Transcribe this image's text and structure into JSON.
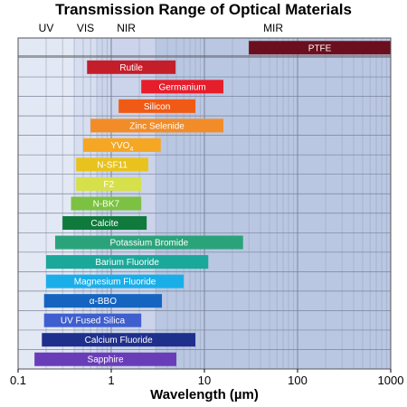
{
  "chart_data": {
    "type": "bar",
    "orientation": "horizontal-range",
    "title": "Transmission Range of Optical Materials",
    "xlabel": "Wavelength (µm)",
    "ylabel": "",
    "xscale": "log",
    "xlim": [
      0.1,
      1000
    ],
    "x_ticks": [
      "0.1",
      "1",
      "10",
      "100",
      "1000"
    ],
    "grid": true,
    "spectral_bands": [
      {
        "name": "UV",
        "range": [
          0.1,
          0.4
        ],
        "color": "#e3e8f5"
      },
      {
        "name": "VIS",
        "range": [
          0.4,
          0.7
        ],
        "color": "#d6deef"
      },
      {
        "name": "NIR",
        "range": [
          0.7,
          3
        ],
        "color": "#cbd4ea"
      },
      {
        "name": "MIR",
        "range": [
          3,
          1000
        ],
        "color": "#bac7e2"
      }
    ],
    "materials": [
      {
        "name": "PTFE",
        "label_main": "PTFE",
        "label_sub": "",
        "range": [
          30,
          1000
        ],
        "color": "#6b0f1e"
      },
      {
        "name": "Rutile",
        "label_main": "Rutile",
        "label_sub": "",
        "range": [
          0.55,
          4.9
        ],
        "color": "#c41e2a"
      },
      {
        "name": "Germanium",
        "label_main": "Germanium",
        "label_sub": "",
        "range": [
          2.1,
          16
        ],
        "color": "#e61e2c"
      },
      {
        "name": "Silicon",
        "label_main": "Silicon",
        "label_sub": "",
        "range": [
          1.2,
          8
        ],
        "color": "#f05a14"
      },
      {
        "name": "Zinc Selenide",
        "label_main": "Zinc Selenide",
        "label_sub": "",
        "range": [
          0.6,
          16
        ],
        "color": "#f28c28"
      },
      {
        "name": "YVO4",
        "label_main": "YVO",
        "label_sub": "4",
        "range": [
          0.5,
          3.4
        ],
        "color": "#f5a623"
      },
      {
        "name": "N-SF11",
        "label_main": "N-SF11",
        "label_sub": "",
        "range": [
          0.42,
          2.5
        ],
        "color": "#e8c31e"
      },
      {
        "name": "F2",
        "label_main": "F2",
        "label_sub": "",
        "range": [
          0.42,
          2.1
        ],
        "color": "#d6e04a"
      },
      {
        "name": "N-BK7",
        "label_main": "N-BK7",
        "label_sub": "",
        "range": [
          0.37,
          2.1
        ],
        "color": "#7cc142"
      },
      {
        "name": "Calcite",
        "label_main": "Calcite",
        "label_sub": "",
        "range": [
          0.3,
          2.4
        ],
        "color": "#0f7a3c"
      },
      {
        "name": "Potassium Bromide",
        "label_main": "Potassium Bromide",
        "label_sub": "",
        "range": [
          0.25,
          26
        ],
        "color": "#2ba37a"
      },
      {
        "name": "Barium Fluoride",
        "label_main": "Barium Fluoride",
        "label_sub": "",
        "range": [
          0.2,
          11
        ],
        "color": "#1aa89a"
      },
      {
        "name": "Magnesium Fluoride",
        "label_main": "Magnesium Fluoride",
        "label_sub": "",
        "range": [
          0.2,
          6
        ],
        "color": "#1aaee8"
      },
      {
        "name": "α-BBO",
        "label_main": "α-BBO",
        "label_sub": "",
        "range": [
          0.19,
          3.5
        ],
        "color": "#1565c0"
      },
      {
        "name": "UV Fused Silica",
        "label_main": "UV Fused Silica",
        "label_sub": "",
        "range": [
          0.19,
          2.1
        ],
        "color": "#3f5fcf"
      },
      {
        "name": "Calcium Fluoride",
        "label_main": "Calcium Fluoride",
        "label_sub": "",
        "range": [
          0.18,
          8
        ],
        "color": "#1f2f8c"
      },
      {
        "name": "Sapphire",
        "label_main": "Sapphire",
        "label_sub": "",
        "range": [
          0.15,
          5
        ],
        "color": "#6a3db8"
      }
    ]
  }
}
